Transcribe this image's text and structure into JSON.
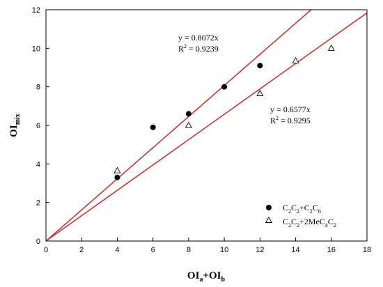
{
  "chart_data": {
    "type": "scatter",
    "xlabel": {
      "main": "OI",
      "sub_a": "a",
      "plus": "+OI",
      "sub_b": "b"
    },
    "ylabel": {
      "main": "OI",
      "sub": "mix"
    },
    "xlim": [
      0,
      18
    ],
    "ylim": [
      0,
      12
    ],
    "x_ticks": [
      "0",
      "2",
      "4",
      "6",
      "8",
      "10",
      "12",
      "14",
      "16",
      "18"
    ],
    "y_ticks": [
      "0",
      "2",
      "4",
      "6",
      "8",
      "10",
      "12"
    ],
    "grid": false,
    "legend_position": "bottom-right",
    "series": [
      {
        "name_parts": [
          [
            "C",
            ""
          ],
          [
            "2",
            "sub"
          ],
          [
            "C",
            ""
          ],
          [
            "2",
            "sub"
          ],
          [
            "+C",
            ""
          ],
          [
            "2",
            "sub"
          ],
          [
            "C",
            ""
          ],
          [
            "6",
            "sub"
          ]
        ],
        "marker": "filled-circle",
        "color": "#000000",
        "points": [
          [
            4,
            3.3
          ],
          [
            6,
            5.9
          ],
          [
            8,
            6.6
          ],
          [
            10,
            8.0
          ],
          [
            12,
            9.1
          ]
        ]
      },
      {
        "name_parts": [
          [
            "C",
            ""
          ],
          [
            "2",
            "sub"
          ],
          [
            "C",
            ""
          ],
          [
            "2",
            "sub"
          ],
          [
            "+2MeC",
            ""
          ],
          [
            "4",
            "sub"
          ],
          [
            "C",
            ""
          ],
          [
            "2",
            "sub"
          ]
        ],
        "marker": "open-triangle",
        "color": "#000000",
        "points": [
          [
            4,
            3.65
          ],
          [
            8,
            6.0
          ],
          [
            12,
            7.65
          ],
          [
            14,
            9.35
          ],
          [
            16,
            10.0
          ]
        ]
      }
    ],
    "fit_lines": [
      {
        "slope": 0.8072,
        "equation": "y = 0.8072x",
        "r2_prefix": "R",
        "r2_exp": "2",
        "r2_value": " = 0.9239",
        "color": "#cc3333"
      },
      {
        "slope": 0.6577,
        "equation": "y = 0.6577x",
        "r2_prefix": "R",
        "r2_exp": "2",
        "r2_value": " = 0.9295",
        "color": "#cc3333"
      }
    ]
  }
}
